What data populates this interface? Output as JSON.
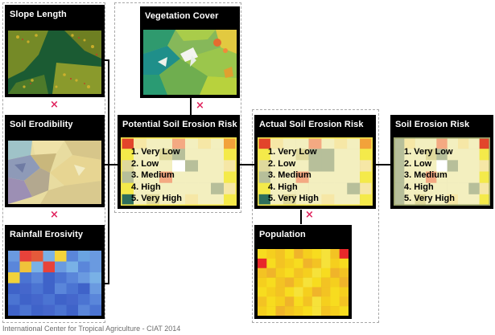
{
  "panels": {
    "slope_length": "Slope Length",
    "soil_erodibility": "Soil Erodibility",
    "rainfall_erosivity": "Rainfall Erosivity",
    "vegetation_cover": "Vegetation Cover",
    "potential_risk": "Potential Soil Erosion Risk",
    "actual_risk": "Actual Soil Erosion Risk",
    "population": "Population",
    "soil_erosion_risk": "Soil Erosion Risk"
  },
  "operators": {
    "multiply": "×"
  },
  "risk_legend": [
    "1. Very Low",
    "2. Low",
    "3. Medium",
    "4. High",
    "5. Very High"
  ],
  "credit": "International Center for Tropical Agriculture - CIAT 2014",
  "colors": {
    "multiply_sign": "#e0245e",
    "panel_background": "#000000",
    "risk_very_low": "#f3efbf",
    "risk_low": "#dfd99c",
    "risk_medium": "#f6e7a6",
    "risk_high": "#f4a982",
    "risk_very_high": "#e2452b",
    "population_high": "#e8282a",
    "population_low": "#f7dc1f"
  }
}
